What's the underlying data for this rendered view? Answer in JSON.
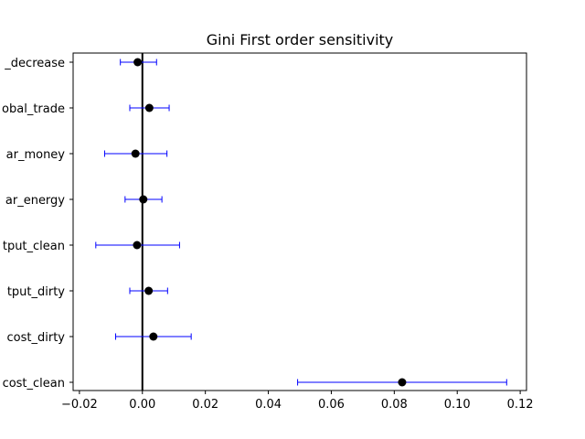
{
  "chart_data": {
    "type": "scatter",
    "title": "Gini First order sensitivity",
    "xlabel": "",
    "ylabel": "",
    "xlim": [
      -0.022,
      0.122
    ],
    "x_ticks": [
      -0.02,
      0.0,
      0.02,
      0.04,
      0.06,
      0.08,
      0.1,
      0.12
    ],
    "x_tick_labels": [
      "−0.02",
      "0.00",
      "0.02",
      "0.04",
      "0.06",
      "0.08",
      "0.10",
      "0.12"
    ],
    "y_tick_labels": [
      "_decrease",
      "obal_trade",
      "ar_money",
      "ar_energy",
      "tput_clean",
      "tput_dirty",
      "cost_dirty",
      "cost_clean"
    ],
    "points": [
      {
        "label": "_decrease",
        "value": -0.0015,
        "err_low": -0.007,
        "err_high": 0.0045
      },
      {
        "label": "obal_trade",
        "value": 0.0022,
        "err_low": -0.004,
        "err_high": 0.0085
      },
      {
        "label": "ar_money",
        "value": -0.0022,
        "err_low": -0.012,
        "err_high": 0.0078
      },
      {
        "label": "ar_energy",
        "value": 0.0003,
        "err_low": -0.0055,
        "err_high": 0.0062
      },
      {
        "label": "tput_clean",
        "value": -0.0017,
        "err_low": -0.0148,
        "err_high": 0.0118
      },
      {
        "label": "tput_dirty",
        "value": 0.002,
        "err_low": -0.004,
        "err_high": 0.008
      },
      {
        "label": "cost_dirty",
        "value": 0.0035,
        "err_low": -0.0085,
        "err_high": 0.0155
      },
      {
        "label": "cost_clean",
        "value": 0.0825,
        "err_low": 0.0493,
        "err_high": 0.1157
      }
    ],
    "reference_line_x": 0.0,
    "grid": false,
    "colors": {
      "point": "#000000",
      "error_bar": "#0000ff",
      "reference_line": "#000000",
      "axes": "#000000"
    }
  }
}
